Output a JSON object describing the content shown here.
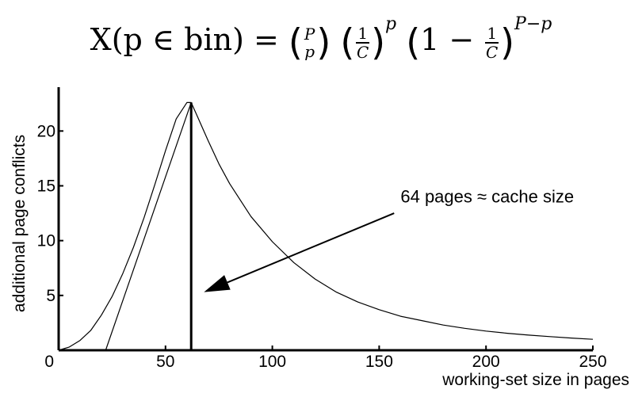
{
  "formula": {
    "lhs": "X(p ∈ bin) = ",
    "binom_top": "P",
    "binom_bottom": "p",
    "frac_num": "1",
    "frac_den": "C",
    "exp1": "p",
    "one_minus": "1 − ",
    "exp2": "P−p"
  },
  "chart_data": {
    "type": "line",
    "title": "",
    "xlabel": "working-set size in pages",
    "ylabel": "additional page conflicts",
    "xlim": [
      0,
      250
    ],
    "ylim": [
      0,
      24
    ],
    "x_ticks": [
      50,
      100,
      150,
      200,
      250
    ],
    "y_ticks": [
      5,
      10,
      15,
      20
    ],
    "origin_label": "0",
    "grid": false,
    "series": [
      {
        "x": [
          0,
          5,
          10,
          15,
          20,
          25,
          30,
          35,
          40,
          45,
          50,
          55,
          60,
          62,
          65,
          70,
          75,
          80,
          90,
          100,
          110,
          120,
          130,
          140,
          150,
          160,
          170,
          180,
          190,
          200,
          210,
          220,
          230,
          240,
          250
        ],
        "y": [
          0,
          0.3,
          0.9,
          1.8,
          3.2,
          4.9,
          7.0,
          9.4,
          12.1,
          15.1,
          18.2,
          21.1,
          22.6,
          22.6,
          21.3,
          19.1,
          17.0,
          15.2,
          12.2,
          9.9,
          8.0,
          6.5,
          5.3,
          4.4,
          3.7,
          3.1,
          2.7,
          2.3,
          2.0,
          1.75,
          1.55,
          1.38,
          1.24,
          1.11,
          1.0
        ]
      },
      {
        "x": [
          22,
          62
        ],
        "y": [
          0,
          22.6
        ]
      },
      {
        "x": [
          62,
          62
        ],
        "y": [
          0,
          22.6
        ]
      }
    ],
    "annotations": [
      {
        "text": "64 pages ≈ cache size",
        "text_x": 160,
        "text_y": 13.5,
        "arrow_from_x": 157,
        "arrow_from_y": 12.5,
        "arrow_to_x": 68,
        "arrow_to_y": 5.3
      }
    ]
  }
}
